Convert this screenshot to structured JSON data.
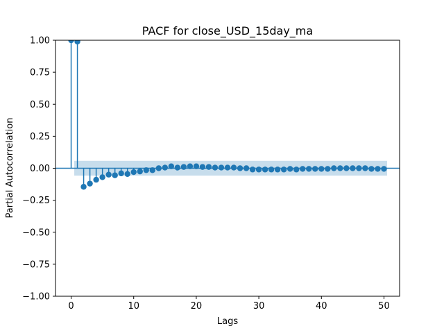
{
  "chart_data": {
    "type": "scatter",
    "style": "stem",
    "title": "PACF for close_USD_15day_ma",
    "xlabel": "Lags",
    "ylabel": "Partial Autocorrelation",
    "xlim": [
      -2.5,
      52.5
    ],
    "ylim": [
      -1.0,
      1.0
    ],
    "xticks": [
      0,
      10,
      20,
      30,
      40,
      50
    ],
    "xtick_labels": [
      "0",
      "10",
      "20",
      "30",
      "40",
      "50"
    ],
    "yticks": [
      1.0,
      0.75,
      0.5,
      0.25,
      0.0,
      -0.25,
      -0.5,
      -0.75,
      -1.0
    ],
    "ytick_labels": [
      "1.00",
      "0.75",
      "0.50",
      "0.25",
      "0.00",
      "−0.25",
      "−0.50",
      "−0.75",
      "−1.00"
    ],
    "grid": false,
    "color": "#1f77b4",
    "band_color": "#1f77b4",
    "confidence_band": {
      "x_start": 0.5,
      "x_end": 50.5,
      "upper": 0.058,
      "lower": -0.058
    },
    "lags": [
      0,
      1,
      2,
      3,
      4,
      5,
      6,
      7,
      8,
      9,
      10,
      11,
      12,
      13,
      14,
      15,
      16,
      17,
      18,
      19,
      20,
      21,
      22,
      23,
      24,
      25,
      26,
      27,
      28,
      29,
      30,
      31,
      32,
      33,
      34,
      35,
      36,
      37,
      38,
      39,
      40,
      41,
      42,
      43,
      44,
      45,
      46,
      47,
      48,
      49,
      50
    ],
    "values": [
      1.0,
      0.99,
      -0.145,
      -0.12,
      -0.09,
      -0.07,
      -0.05,
      -0.055,
      -0.04,
      -0.045,
      -0.03,
      -0.025,
      -0.015,
      -0.015,
      0.0,
      0.005,
      0.015,
      0.005,
      0.01,
      0.015,
      0.015,
      0.01,
      0.01,
      0.005,
      0.005,
      0.005,
      0.005,
      0.0,
      0.0,
      -0.01,
      -0.01,
      -0.01,
      -0.01,
      -0.01,
      -0.01,
      -0.005,
      -0.01,
      -0.005,
      -0.005,
      -0.005,
      -0.005,
      -0.005,
      0.0,
      0.0,
      0.0,
      0.0,
      0.0,
      0.0,
      -0.005,
      -0.005,
      -0.005
    ]
  }
}
